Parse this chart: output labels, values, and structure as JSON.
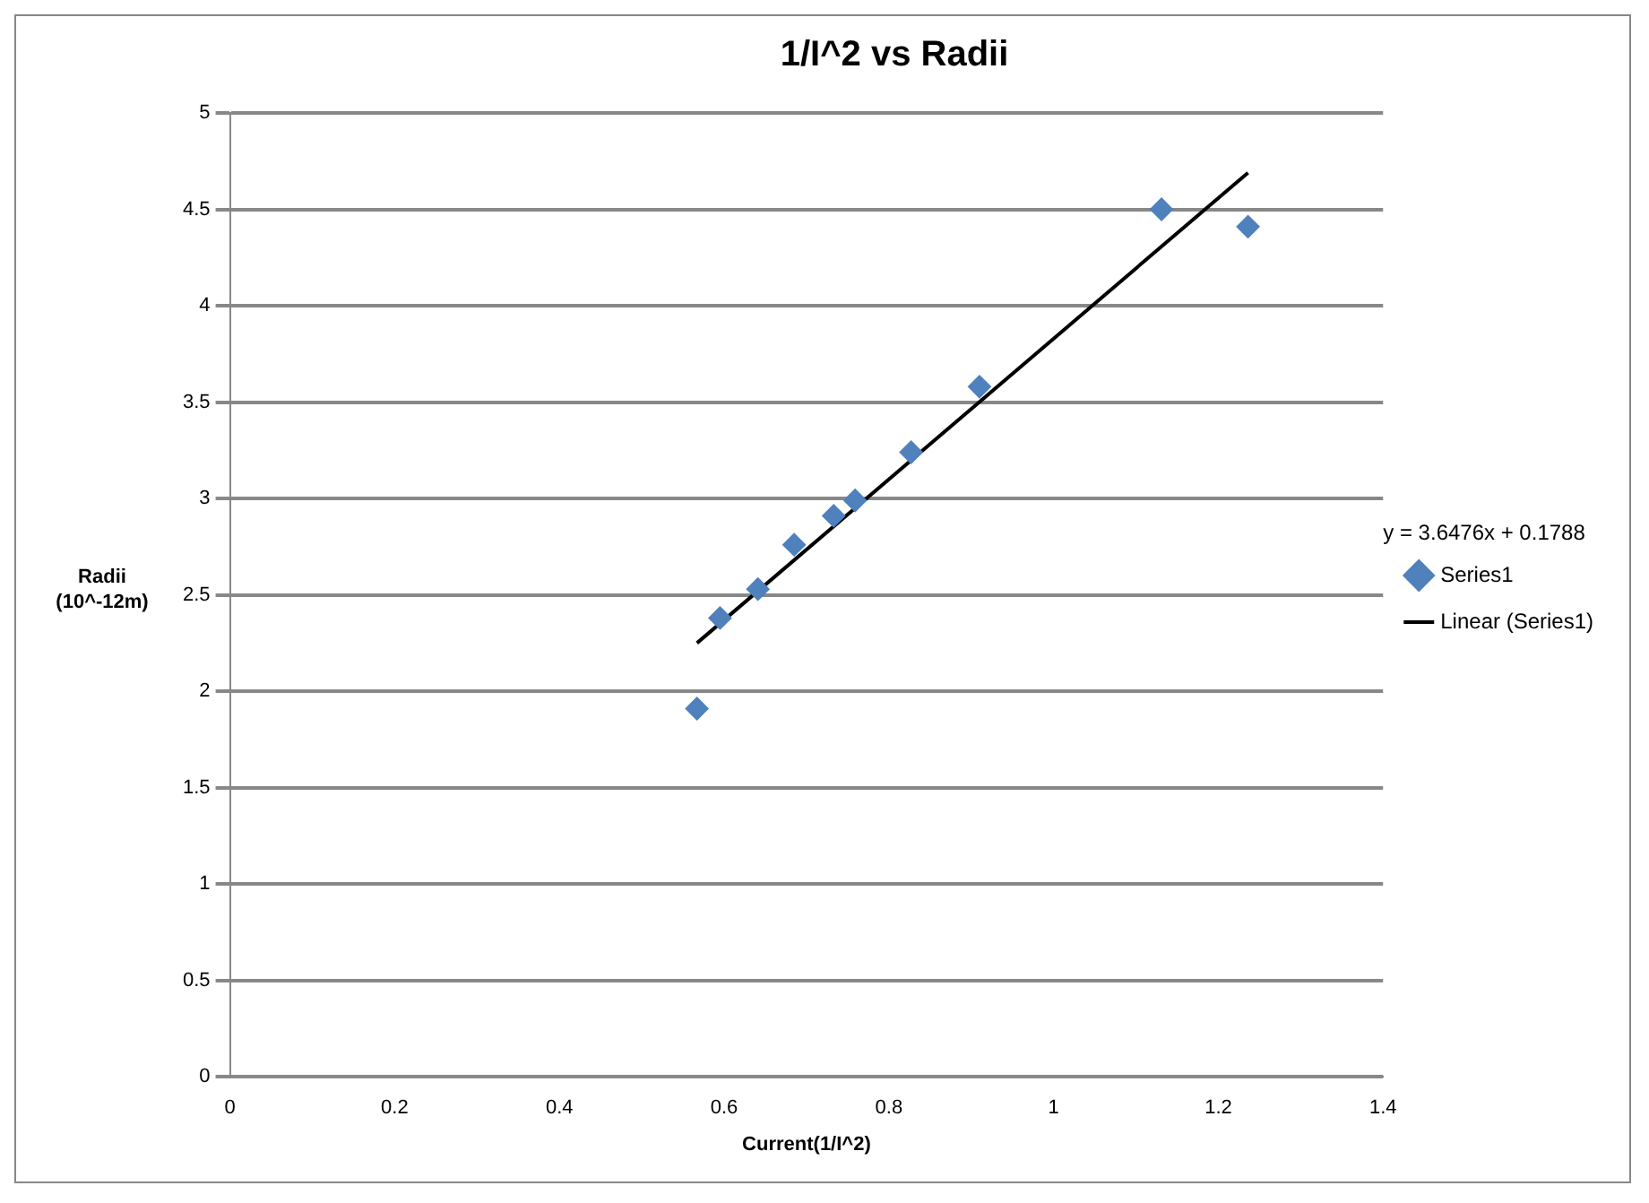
{
  "chart_data": {
    "type": "scatter",
    "title": "1/I^2 vs Radii",
    "xlabel": "Current(1/I^2)",
    "ylabel": "Radii\n(10^-12m)",
    "xlim": [
      0,
      1.4
    ],
    "xticks": [
      0,
      0.2,
      0.4,
      0.6,
      0.8,
      1,
      1.2,
      1.4
    ],
    "ylim": [
      0,
      5
    ],
    "yticks": [
      0,
      0.5,
      1,
      1.5,
      2,
      2.5,
      3,
      3.5,
      4,
      4.5,
      5
    ],
    "grid": "y",
    "legend": "right",
    "marker": "diamond",
    "annotations": [
      "y = 3.6476x + 0.1788"
    ],
    "series": [
      {
        "name": "Series1",
        "type": "scatter",
        "color": "#4f81bd",
        "x": [
          0.567,
          0.595,
          0.641,
          0.685,
          0.733,
          0.759,
          0.827,
          0.91,
          1.131,
          1.236
        ],
        "values": [
          1.91,
          2.38,
          2.53,
          2.76,
          2.91,
          2.99,
          3.24,
          3.58,
          4.5,
          4.41
        ]
      },
      {
        "name": "Linear (Series1)",
        "type": "line",
        "color": "#000000",
        "marker": "none",
        "x": [
          0.567,
          1.236
        ],
        "values": [
          2.25,
          4.69
        ]
      }
    ]
  }
}
